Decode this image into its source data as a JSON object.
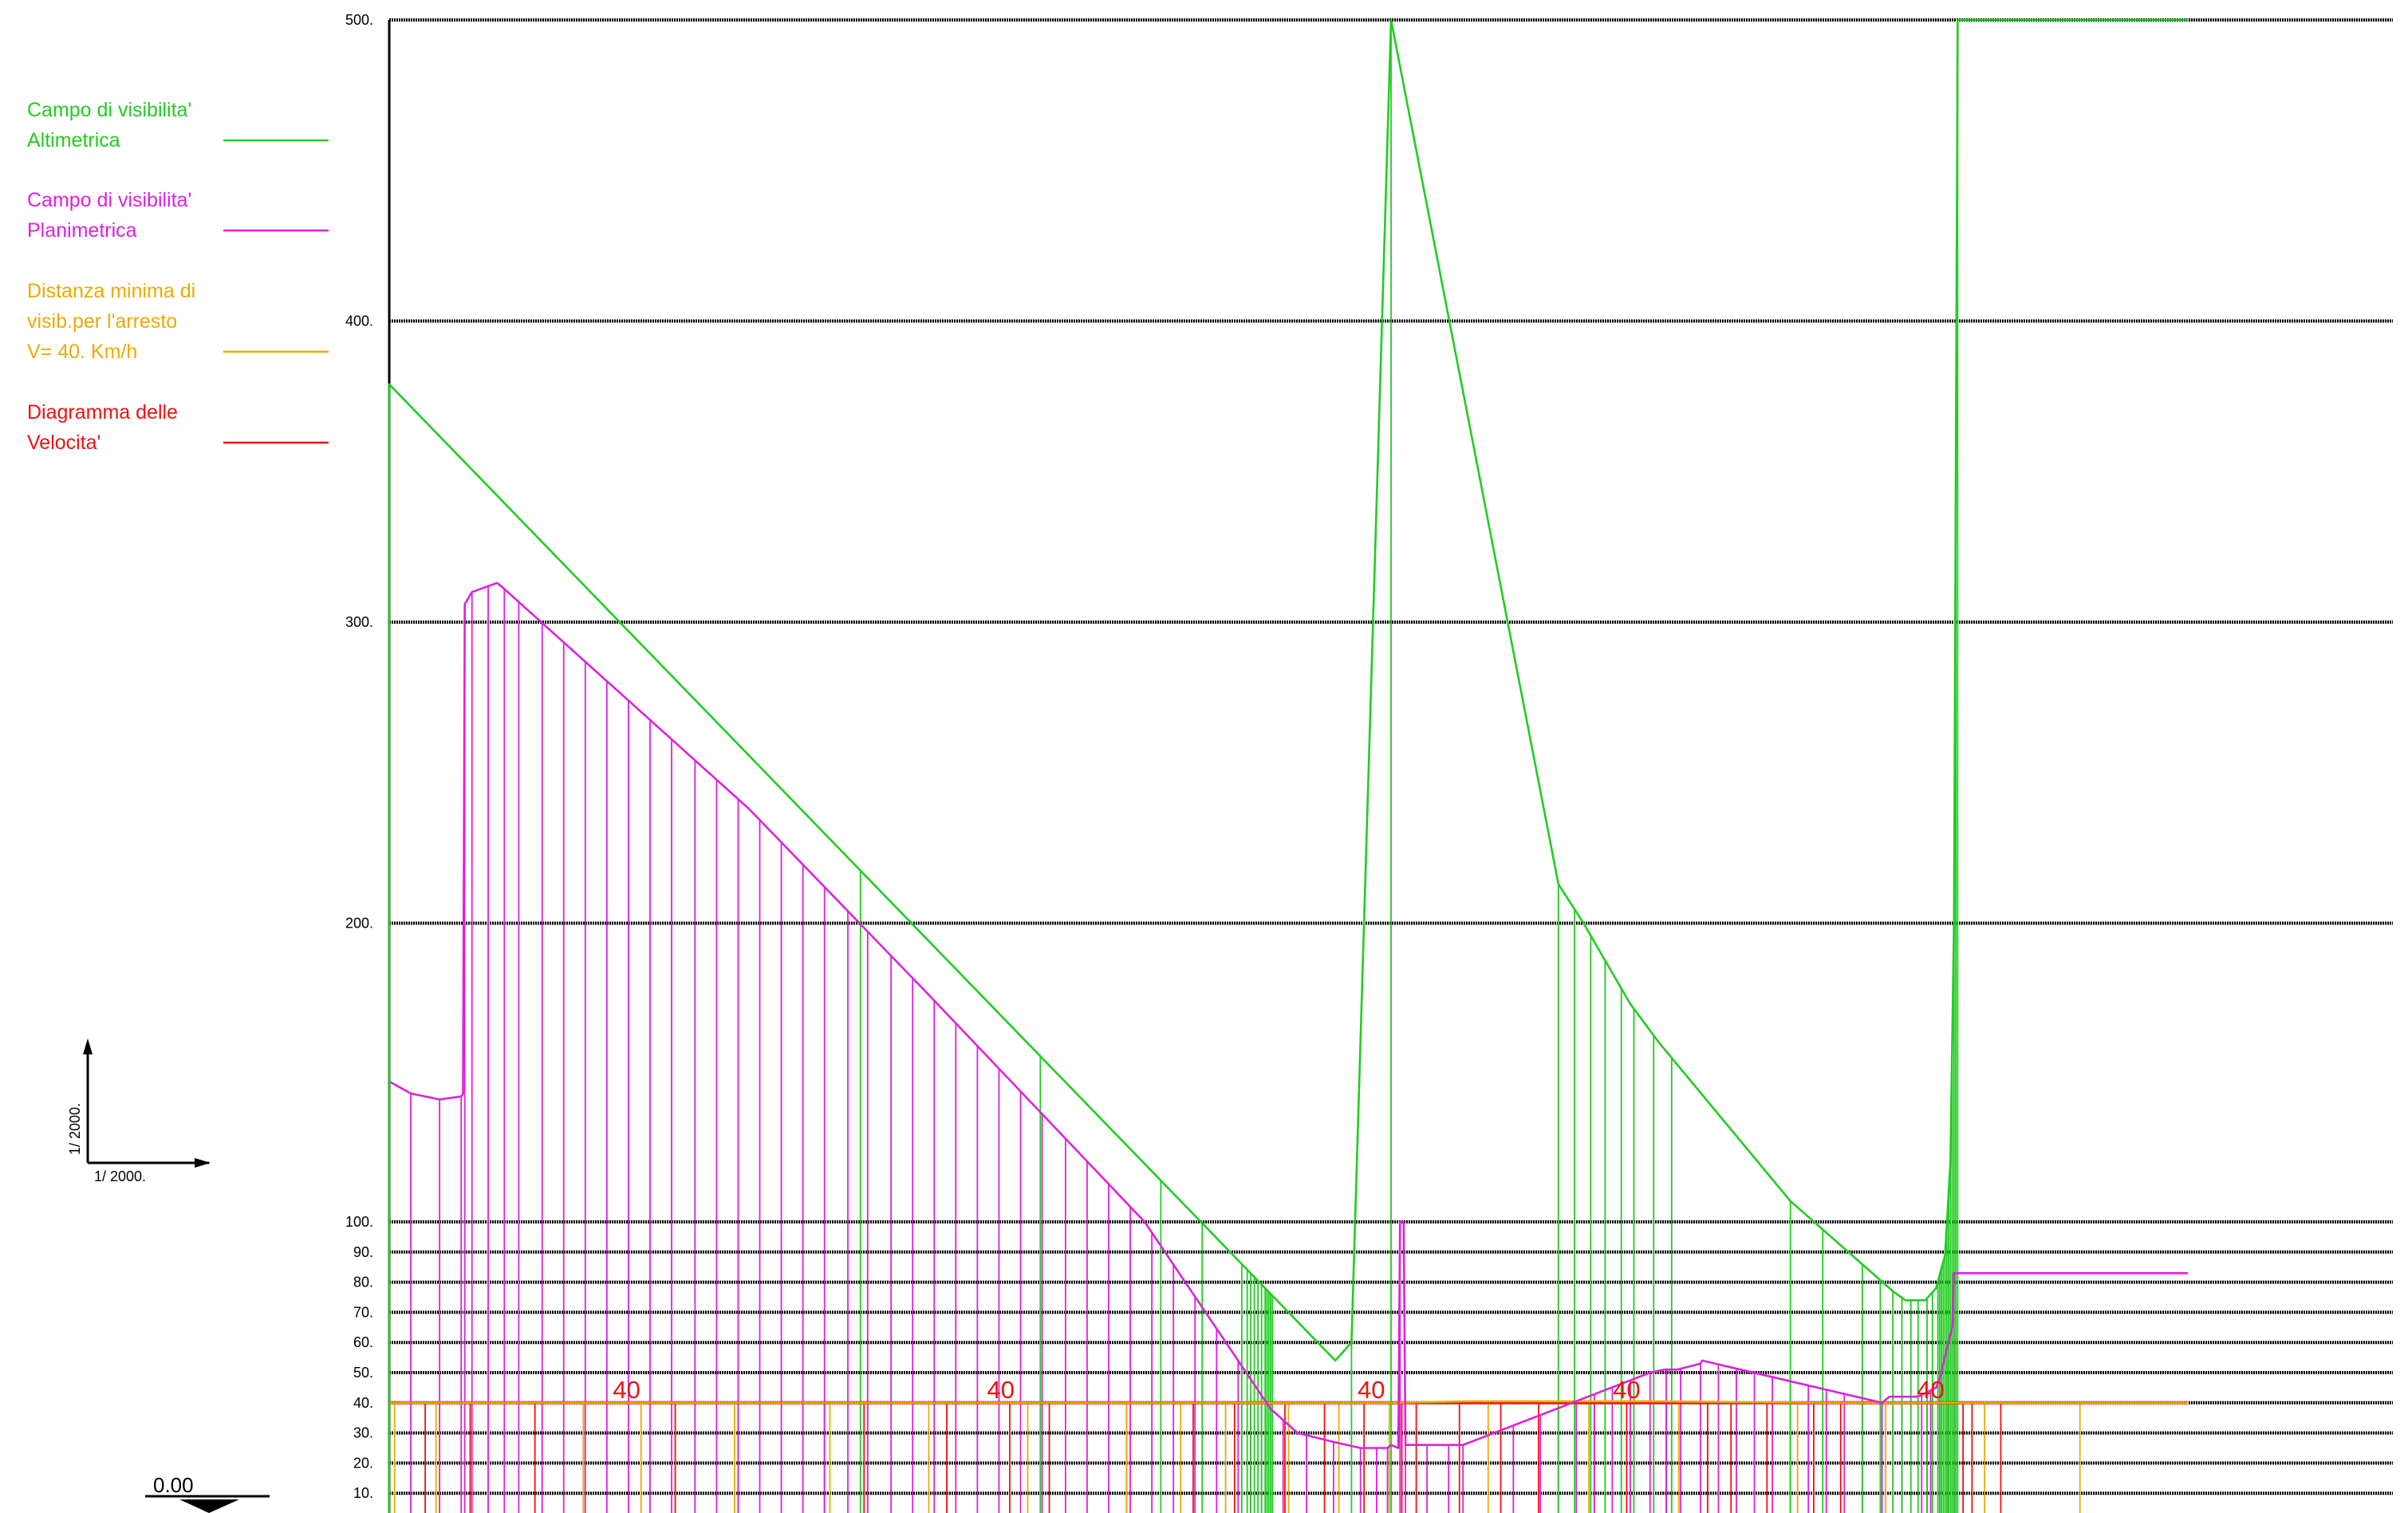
{
  "legend": [
    {
      "lines": [
        "Campo di visibilita'",
        "Altimetrica"
      ],
      "color": "#22cc22"
    },
    {
      "lines": [
        "Campo di visibilita'",
        "Planimetrica"
      ],
      "color": "#dd22dd"
    },
    {
      "lines": [
        "Distanza minima di",
        "visib.per l'arresto",
        "V=  40.     Km/h"
      ],
      "color": "#eeaa00"
    },
    {
      "lines": [
        "Diagramma delle",
        "Velocita'"
      ],
      "color": "#ee1111"
    }
  ],
  "scale": {
    "vertical": "1/   2000.",
    "horizontal": "1/   2000."
  },
  "elevation_label": "0.00",
  "colors": {
    "grid": "#000000",
    "altimetric": "#22cc22",
    "planimetric": "#dd22dd",
    "stopping": "#eeaa00",
    "speed": "#ee1111"
  },
  "chart_data": {
    "type": "line",
    "y_ticks_upper": [
      "500.",
      "400.",
      "300.",
      "200."
    ],
    "y_ticks_lower": [
      "100.",
      "90.",
      "80.",
      "70.",
      "60.",
      "50.",
      "40.",
      "30.",
      "20.",
      "10."
    ],
    "y_upper_values": [
      500,
      400,
      300,
      200
    ],
    "y_lower_values": [
      100,
      90,
      80,
      70,
      60,
      50,
      40,
      30,
      20,
      10
    ],
    "xlim": [
      0,
      1000
    ],
    "speed_labels": [
      {
        "text": "40",
        "x": 132
      },
      {
        "text": "40",
        "x": 340
      },
      {
        "text": "40",
        "x": 546
      },
      {
        "text": "40",
        "x": 688
      },
      {
        "text": "40",
        "x": 857
      }
    ],
    "series": [
      {
        "name": "Campo di visibilita' Altimetrica",
        "color": "#22cc22",
        "points": [
          [
            0,
            0
          ],
          [
            0,
            379
          ],
          [
            526,
            54
          ],
          [
            535,
            60
          ],
          [
            557,
            500
          ],
          [
            650,
            213
          ],
          [
            664,
            200
          ],
          [
            690,
            173
          ],
          [
            706,
            160
          ],
          [
            779,
            107
          ],
          [
            836,
            77
          ],
          [
            843,
            74
          ],
          [
            854,
            74
          ],
          [
            860,
            78
          ],
          [
            865,
            89
          ],
          [
            868,
            120
          ],
          [
            870,
            200
          ],
          [
            872,
            500
          ],
          [
            1000,
            500
          ]
        ],
        "drop_x": [
          0,
          262,
          362,
          429,
          452,
          474,
          477,
          479,
          481,
          483,
          485,
          487,
          488,
          489,
          490,
          491,
          535,
          557,
          650,
          659,
          668,
          676,
          685,
          692,
          703,
          713,
          779,
          797,
          819,
          829,
          836,
          841,
          846,
          850,
          855,
          858,
          861,
          862,
          863,
          864,
          865,
          866,
          867,
          868,
          869,
          870,
          871,
          872
        ]
      },
      {
        "name": "Campo di visibilita' Planimetrica",
        "color": "#dd22dd",
        "points": [
          [
            0,
            147
          ],
          [
            12,
            143
          ],
          [
            28,
            141
          ],
          [
            40,
            142
          ],
          [
            41,
            143
          ],
          [
            42,
            306
          ],
          [
            46,
            310
          ],
          [
            60,
            313
          ],
          [
            64,
            311
          ],
          [
            200,
            238
          ],
          [
            300,
            176
          ],
          [
            420,
            100
          ],
          [
            490,
            38
          ],
          [
            505,
            30
          ],
          [
            525,
            27
          ],
          [
            540,
            25
          ],
          [
            549,
            25
          ],
          [
            555,
            25
          ],
          [
            557,
            26
          ],
          [
            561,
            25
          ],
          [
            562,
            100
          ],
          [
            564,
            100
          ],
          [
            565,
            26
          ],
          [
            577,
            26
          ],
          [
            589,
            26
          ],
          [
            597,
            26
          ],
          [
            701,
            50
          ],
          [
            709,
            51
          ],
          [
            716,
            51
          ],
          [
            729,
            53
          ],
          [
            730,
            54
          ],
          [
            830,
            40
          ],
          [
            834,
            42
          ],
          [
            840,
            42
          ],
          [
            850,
            42
          ],
          [
            860,
            45
          ],
          [
            862,
            48
          ],
          [
            866,
            58
          ],
          [
            869,
            65
          ],
          [
            870,
            83
          ],
          [
            1000,
            83
          ]
        ],
        "drop_x": [
          12,
          28,
          40,
          42,
          46,
          55,
          64,
          72,
          85,
          97,
          109,
          121,
          133,
          145,
          157,
          170,
          182,
          194,
          206,
          218,
          230,
          242,
          255,
          266,
          279,
          291,
          303,
          315,
          327,
          339,
          351,
          363,
          376,
          388,
          400,
          412,
          424,
          436,
          448,
          460,
          472,
          485,
          497,
          510,
          525,
          540,
          549,
          555,
          562,
          565,
          577,
          589,
          597,
          625,
          640,
          650,
          660,
          670,
          680,
          690,
          701,
          710,
          718,
          729,
          739,
          749,
          759,
          769,
          779,
          789,
          799,
          809,
          819,
          830,
          841,
          852,
          857,
          862,
          866,
          869,
          870
        ]
      },
      {
        "name": "Distanza minima di visib.per l'arresto V= 40. Km/h",
        "color": "#eeaa00",
        "points": [
          [
            0,
            40
          ],
          [
            560,
            40
          ],
          [
            600,
            40.5
          ],
          [
            700,
            40.5
          ],
          [
            800,
            40
          ],
          [
            1000,
            40
          ]
        ],
        "drop_x": [
          3,
          26,
          55,
          108,
          140,
          192,
          245,
          300,
          355,
          410,
          440,
          465,
          500,
          528,
          556,
          611,
          667,
          717,
          783,
          832,
          887,
          940
        ]
      },
      {
        "name": "Diagramma delle Velocita'",
        "color": "#ee1111",
        "points": [
          [
            0,
            40
          ],
          [
            1000,
            40
          ]
        ],
        "drop_x": [
          0,
          20,
          45,
          81,
          108,
          159,
          194,
          242,
          264,
          310,
          345,
          367,
          410,
          447,
          470,
          479,
          498,
          520,
          542,
          563,
          571,
          595,
          618,
          639,
          670,
          688,
          710,
          733,
          746,
          766,
          792,
          807,
          829,
          855,
          867,
          875,
          880,
          896
        ]
      }
    ]
  }
}
